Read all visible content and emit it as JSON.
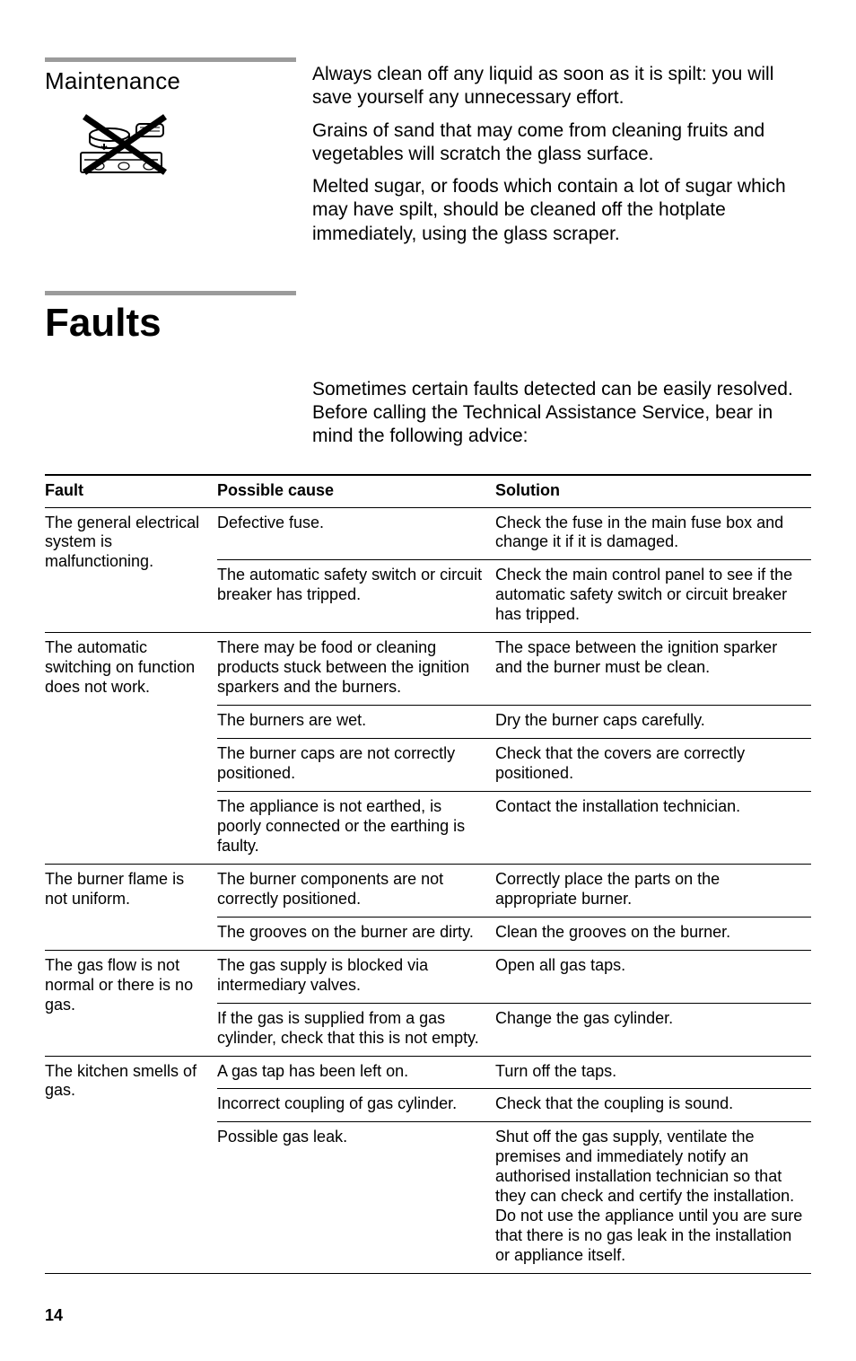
{
  "maintenance": {
    "heading": "Maintenance",
    "paragraphs": [
      "Always clean off any liquid as soon as it is spilt: you will save yourself any unnecessary effort.",
      "Grains of sand that may come from cleaning fruits and vegetables will scratch the glass surface.",
      "Melted sugar, or foods which contain a lot of sugar which may have spilt, should be cleaned off the hotplate immediately, using the glass scraper."
    ]
  },
  "faults": {
    "heading": "Faults",
    "intro": "Sometimes certain faults detected can be easily resolved. Before calling the Technical Assistance Service, bear in mind the following advice:",
    "columns": [
      "Fault",
      "Possible cause",
      "Solution"
    ],
    "groups": [
      {
        "fault": "The general electrical system is malfunctioning.",
        "rows": [
          {
            "cause": "Defective fuse.",
            "solution": "Check the fuse in the main fuse box and change it if it is damaged."
          },
          {
            "cause": "The automatic safety switch or circuit breaker has tripped.",
            "solution": "Check the main control panel to see if the automatic safety switch or circuit breaker has tripped."
          }
        ]
      },
      {
        "fault": "The automatic switching on function does not work.",
        "rows": [
          {
            "cause": "There may be food or cleaning products stuck between the ignition sparkers and the burners.",
            "solution": "The space between the ignition sparker and the burner must be clean."
          },
          {
            "cause": "The burners are wet.",
            "solution": "Dry the burner caps carefully."
          },
          {
            "cause": "The burner caps are not correctly positioned.",
            "solution": "Check that the covers are correctly positioned."
          },
          {
            "cause": "The appliance is not earthed, is poorly connected or the earthing is faulty.",
            "solution": "Contact the installation technician."
          }
        ]
      },
      {
        "fault": "The burner flame is not uniform.",
        "rows": [
          {
            "cause": "The burner components are not correctly positioned.",
            "solution": "Correctly place the parts on the appropriate burner."
          },
          {
            "cause": "The grooves on the burner are dirty.",
            "solution": "Clean the grooves on the burner."
          }
        ]
      },
      {
        "fault": "The gas flow is not normal or there is no gas.",
        "rows": [
          {
            "cause": "The gas supply is blocked via intermediary valves.",
            "solution": "Open all gas taps."
          },
          {
            "cause": "If the gas is supplied from a gas cylinder, check that this is not empty.",
            "solution": "Change the gas cylinder."
          }
        ]
      },
      {
        "fault": "The kitchen smells of gas.",
        "rows": [
          {
            "cause": "A gas tap has been left on.",
            "solution": "Turn off the taps."
          },
          {
            "cause": "Incorrect coupling of gas cylinder.",
            "solution": "Check that the coupling is sound."
          },
          {
            "cause": "Possible gas leak.",
            "solution": "Shut off the gas supply, ventilate the premises and immediately notify an authorised installation technician so that they can check and certify the installation. Do not use the appliance until you are sure that there is no gas leak in the installation or appliance itself."
          }
        ]
      }
    ]
  },
  "pageNumber": "14",
  "colors": {
    "rule_gray": "#9b9b9b",
    "text": "#000000",
    "bg": "#ffffff"
  }
}
